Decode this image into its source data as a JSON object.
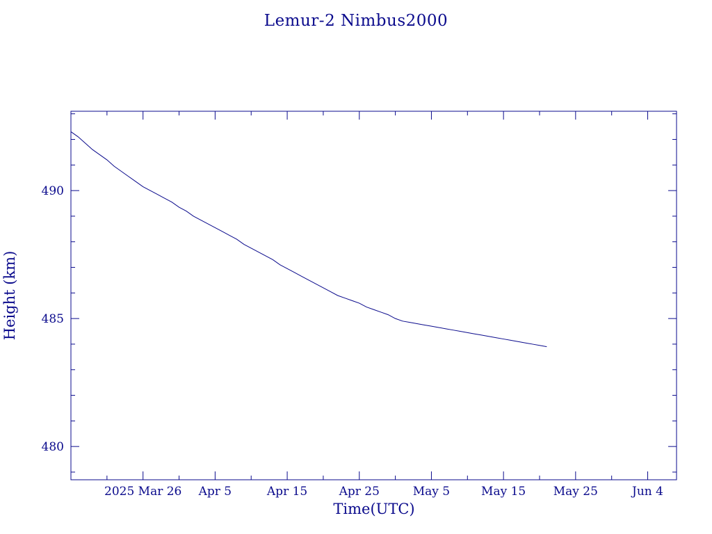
{
  "chart_data": {
    "type": "line",
    "title": "Lemur-2 Nimbus2000",
    "xlabel": "Time(UTC)",
    "ylabel": "Height (km)",
    "colors": {
      "axes": "#0a0a8c",
      "line": "#0a0a8c",
      "text": "#0a0a8c"
    },
    "grid": false,
    "x_range": [
      "2025-03-16",
      "2025-06-08"
    ],
    "ylim": [
      478.7,
      493.1
    ],
    "x_ticks": [
      {
        "date": "2025-03-26",
        "label": "2025 Mar 26"
      },
      {
        "date": "2025-04-05",
        "label": "Apr  5"
      },
      {
        "date": "2025-04-15",
        "label": "Apr 15"
      },
      {
        "date": "2025-04-25",
        "label": "Apr 25"
      },
      {
        "date": "2025-05-05",
        "label": "May  5"
      },
      {
        "date": "2025-05-15",
        "label": "May 15"
      },
      {
        "date": "2025-05-25",
        "label": "May 25"
      },
      {
        "date": "2025-06-04",
        "label": "Jun  4"
      }
    ],
    "x_minor_dates": [
      "2025-03-21",
      "2025-03-31",
      "2025-04-10",
      "2025-04-20",
      "2025-04-30",
      "2025-05-10",
      "2025-05-20",
      "2025-05-30"
    ],
    "y_ticks": [
      {
        "value": 480,
        "label": "480"
      },
      {
        "value": 485,
        "label": "485"
      },
      {
        "value": 490,
        "label": "490"
      }
    ],
    "y_minor_step": 1,
    "series": [
      {
        "x": [
          "2025-03-16",
          "2025-03-17",
          "2025-03-18",
          "2025-03-19",
          "2025-03-20",
          "2025-03-21",
          "2025-03-22",
          "2025-03-23",
          "2025-03-24",
          "2025-03-25",
          "2025-03-26",
          "2025-03-27",
          "2025-03-28",
          "2025-03-29",
          "2025-03-30",
          "2025-03-31",
          "2025-04-01",
          "2025-04-02",
          "2025-04-03",
          "2025-04-04",
          "2025-04-05",
          "2025-04-06",
          "2025-04-07",
          "2025-04-08",
          "2025-04-09",
          "2025-04-10",
          "2025-04-11",
          "2025-04-12",
          "2025-04-13",
          "2025-04-14",
          "2025-04-15",
          "2025-04-16",
          "2025-04-17",
          "2025-04-18",
          "2025-04-19",
          "2025-04-20",
          "2025-04-21",
          "2025-04-22",
          "2025-04-23",
          "2025-04-24",
          "2025-04-25",
          "2025-04-26",
          "2025-04-27",
          "2025-04-28",
          "2025-04-29",
          "2025-04-30",
          "2025-05-01",
          "2025-05-02",
          "2025-05-03",
          "2025-05-04",
          "2025-05-05",
          "2025-05-06",
          "2025-05-07",
          "2025-05-08",
          "2025-05-09",
          "2025-05-10",
          "2025-05-11",
          "2025-05-12",
          "2025-05-13",
          "2025-05-14",
          "2025-05-15",
          "2025-05-16",
          "2025-05-17",
          "2025-05-18",
          "2025-05-19",
          "2025-05-20",
          "2025-05-21"
        ],
        "y": [
          492.3,
          492.1,
          491.85,
          491.6,
          491.4,
          491.2,
          490.95,
          490.75,
          490.55,
          490.35,
          490.15,
          490.0,
          489.85,
          489.7,
          489.55,
          489.35,
          489.2,
          489.0,
          488.85,
          488.7,
          488.55,
          488.4,
          488.25,
          488.1,
          487.9,
          487.75,
          487.6,
          487.45,
          487.3,
          487.1,
          486.95,
          486.8,
          486.65,
          486.5,
          486.35,
          486.2,
          486.05,
          485.9,
          485.8,
          485.7,
          485.6,
          485.45,
          485.35,
          485.25,
          485.15,
          485.0,
          484.9,
          484.85,
          484.8,
          484.75,
          484.7,
          484.65,
          484.6,
          484.55,
          484.5,
          484.45,
          484.4,
          484.35,
          484.3,
          484.25,
          484.2,
          484.15,
          484.1,
          484.05,
          484.0,
          483.95,
          483.9
        ]
      }
    ]
  }
}
